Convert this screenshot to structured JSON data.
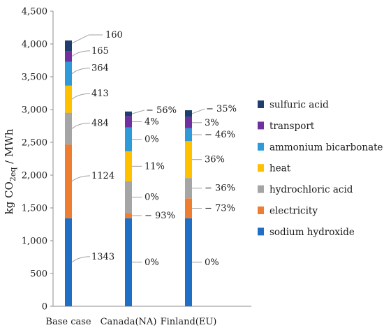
{
  "chart_data": {
    "type": "bar",
    "subtype": "stacked-waterfall",
    "ylabel_parts": [
      "kg CO",
      "2eq",
      " / MWh"
    ],
    "ylim": [
      0,
      4500
    ],
    "yticks": [
      "0",
      "500",
      "1,000",
      "1,500",
      "2,000",
      "2,500",
      "3,000",
      "3,500",
      "4,000",
      "4,500"
    ],
    "ytick_values": [
      0,
      500,
      1000,
      1500,
      2000,
      2500,
      3000,
      3500,
      4000,
      4500
    ],
    "grid": false,
    "legend_position": "right",
    "categories": [
      "Base case",
      "Canada(NA)",
      "Finland(EU)"
    ],
    "series": [
      {
        "name": "sodium hydroxide",
        "color": "#1f6fc5",
        "values": [
          1343,
          1343,
          1343
        ],
        "labels": [
          "1343",
          "0%",
          "0%"
        ]
      },
      {
        "name": "electricity",
        "color": "#ef7d31",
        "values": [
          1124,
          79,
          303
        ],
        "labels": [
          "1124",
          "− 93%",
          "− 73%"
        ]
      },
      {
        "name": "hydrochloric acid",
        "color": "#a5a5a5",
        "values": [
          484,
          484,
          310
        ],
        "labels": [
          "484",
          "0%",
          "− 36%"
        ]
      },
      {
        "name": "heat",
        "color": "#ffc000",
        "values": [
          413,
          458,
          562
        ],
        "labels": [
          "413",
          "11%",
          "36%"
        ]
      },
      {
        "name": "ammonium bicarbonate",
        "color": "#2e9ad8",
        "values": [
          364,
          364,
          197
        ],
        "labels": [
          "364",
          "0%",
          "− 46%"
        ]
      },
      {
        "name": "transport",
        "color": "#7030a0",
        "values": [
          165,
          172,
          170
        ],
        "labels": [
          "165",
          "4%",
          "3%"
        ]
      },
      {
        "name": "sulfuric acid",
        "color": "#1f3e6e",
        "values": [
          160,
          70,
          104
        ],
        "labels": [
          "160",
          "− 56%",
          "− 35%"
        ]
      }
    ],
    "legend_order": [
      "sulfuric acid",
      "transport",
      "ammonium bicarbonate",
      "heat",
      "hydrochloric acid",
      "electricity",
      "sodium hydroxide"
    ]
  }
}
